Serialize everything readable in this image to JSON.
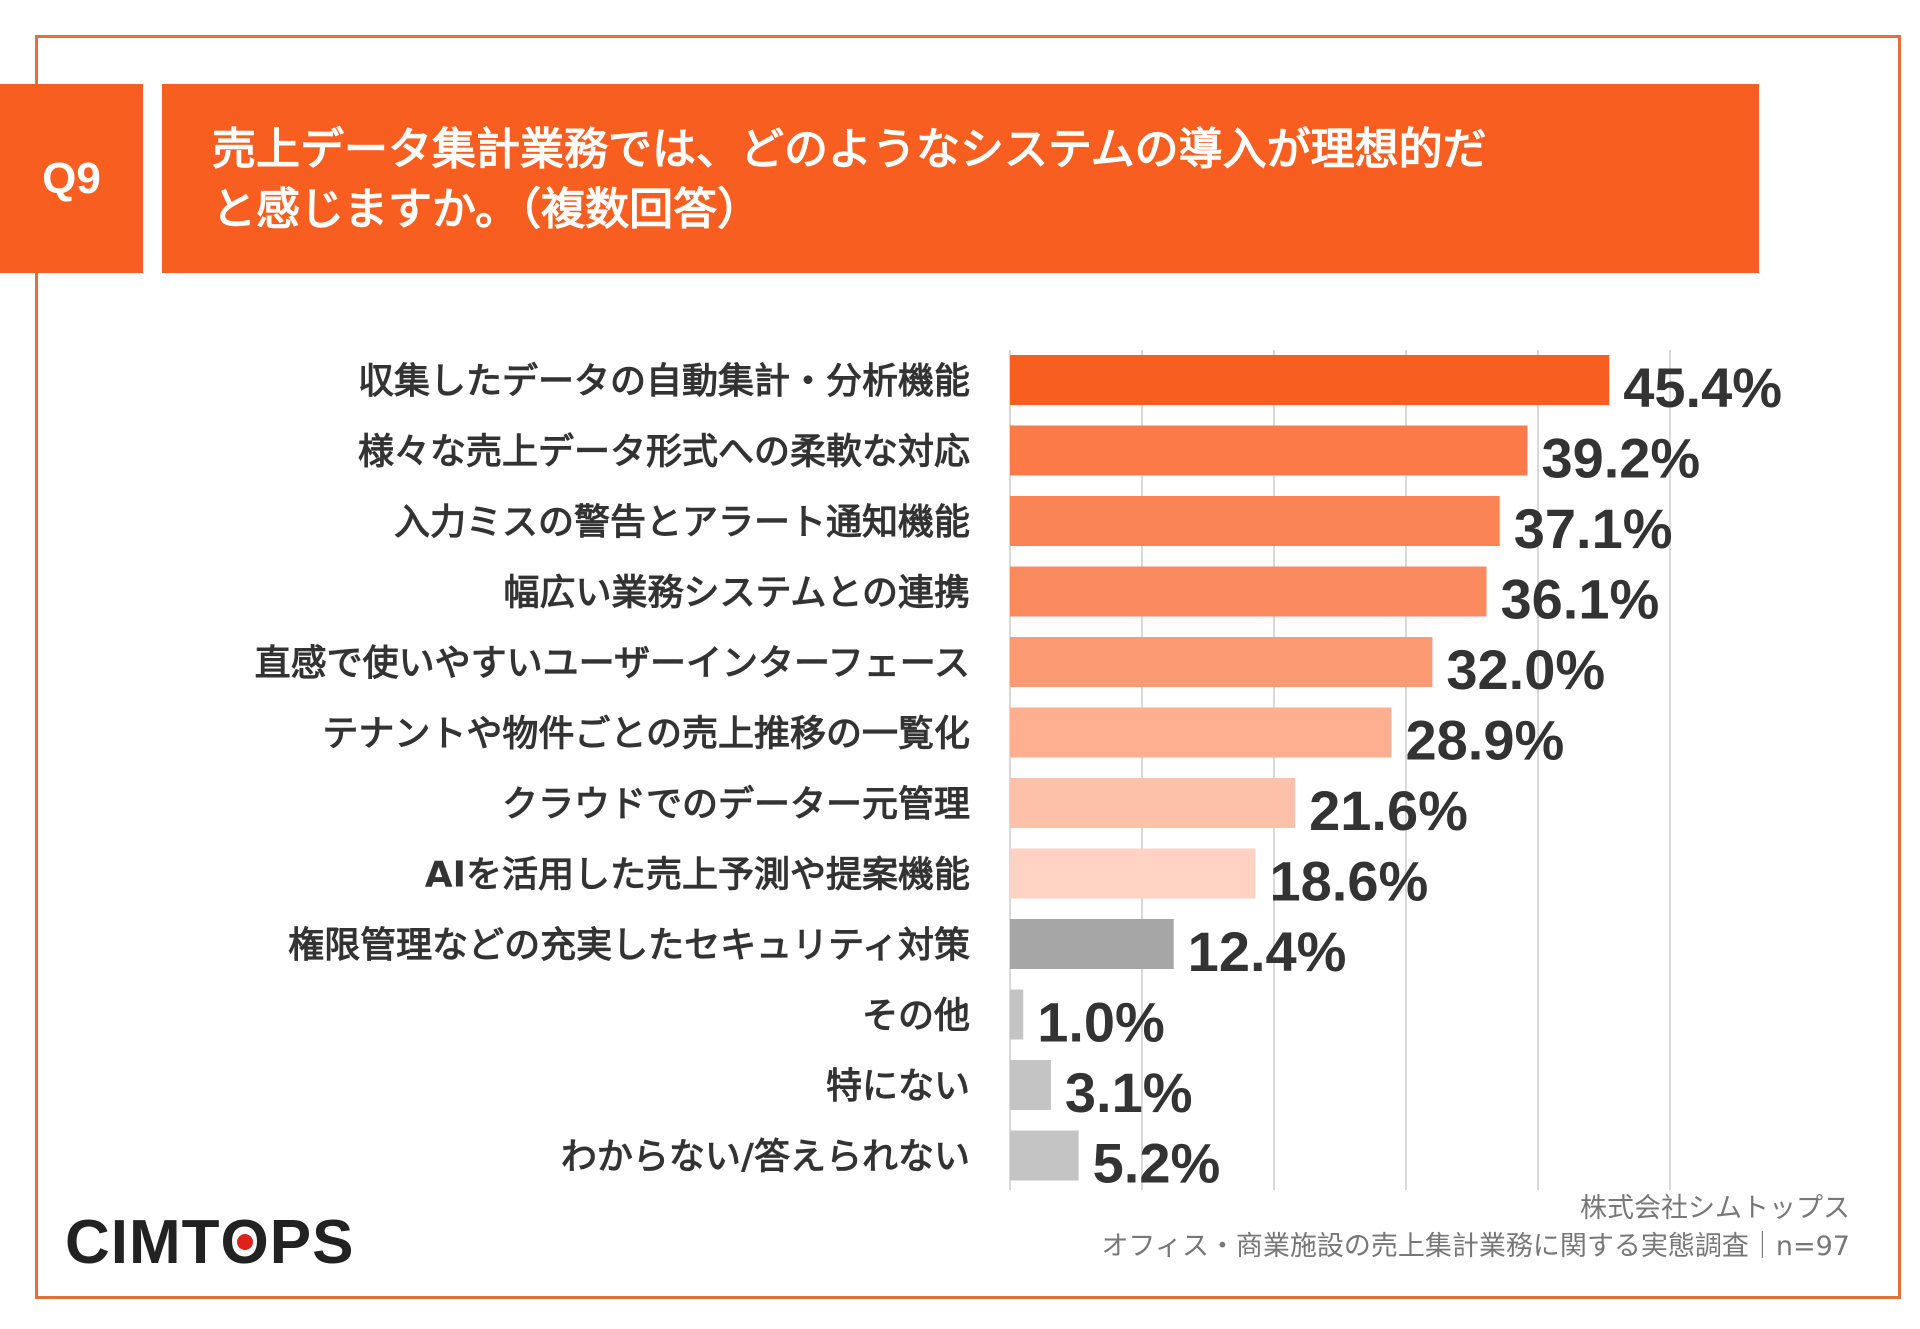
{
  "colors": {
    "frame": "#e2703a",
    "header": "#f95e21",
    "grid": "#d9d9d9",
    "bars": [
      "#f95e21",
      "#fb7a48",
      "#fb8457",
      "#fb8a5f",
      "#fc9a74",
      "#fdaf90",
      "#fdc0a8",
      "#fed3c3",
      "#a6a6a6",
      "#c4c4c4",
      "#c4c4c4",
      "#c4c4c4"
    ]
  },
  "header": {
    "q_label": "Q9",
    "title": "売上データ集計業務では、どのようなシステムの導入が理想的だと感じますか。（複数回答）"
  },
  "chart_data": {
    "type": "bar",
    "orientation": "horizontal",
    "categories": [
      "収集したデータの自動集計・分析機能",
      "様々な売上データ形式への柔軟な対応",
      "入力ミスの警告とアラート通知機能",
      "幅広い業務システムとの連携",
      "直感で使いやすいユーザーインターフェース",
      "テナントや物件ごとの売上推移の一覧化",
      "クラウドでのデーター元管理",
      "AIを活用した売上予測や提案機能",
      "権限管理などの充実したセキュリティ対策",
      "その他",
      "特にない",
      "わからない/答えられない"
    ],
    "values": [
      45.4,
      39.2,
      37.1,
      36.1,
      32.0,
      28.9,
      21.6,
      18.6,
      12.4,
      1.0,
      3.1,
      5.2
    ],
    "value_labels": [
      "45.4%",
      "39.2%",
      "37.1%",
      "36.1%",
      "32.0%",
      "28.9%",
      "21.6%",
      "18.6%",
      "12.4%",
      "1.0%",
      "3.1%",
      "5.2%"
    ],
    "xlim": [
      0,
      50
    ],
    "grid": true,
    "gridlines": [
      0,
      10,
      20,
      30,
      40,
      50
    ],
    "unit": "%"
  },
  "footer": {
    "logo_text": "CIMTOPS",
    "company": "株式会社シムトップス",
    "survey": "オフィス・商業施設の売上集計業務に関する実態調査｜n=97"
  }
}
